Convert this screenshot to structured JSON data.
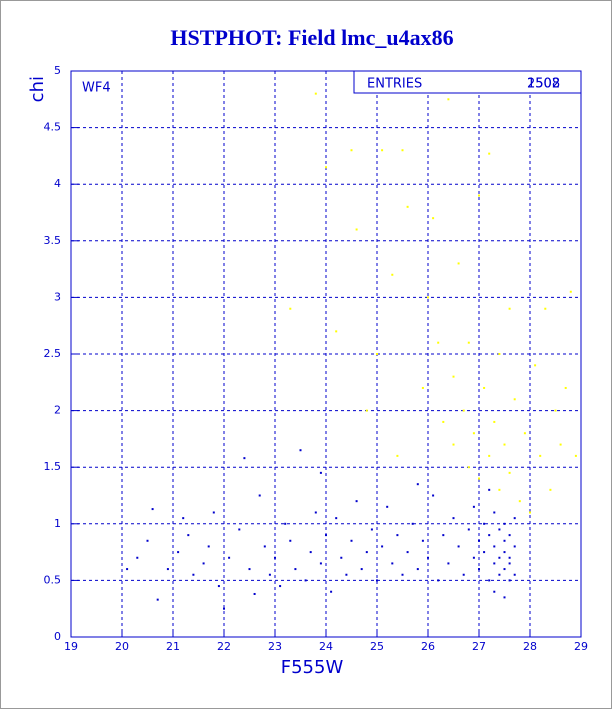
{
  "chart_data": {
    "type": "scatter",
    "title": "HSTPHOT: Field lmc_u4ax86",
    "xlabel": "F555W",
    "ylabel": "chi",
    "annotation": "WF4",
    "legend_label": "ENTRIES",
    "entries": [
      "2508",
      "1502"
    ],
    "xlim": [
      19,
      29
    ],
    "xticks": [
      19,
      20,
      21,
      22,
      23,
      24,
      25,
      26,
      27,
      28,
      29
    ],
    "ylim": [
      0,
      5
    ],
    "yticks": [
      0,
      0.5,
      1,
      1.5,
      2,
      2.5,
      3,
      3.5,
      4,
      4.5,
      5
    ],
    "grid": true,
    "series": [
      {
        "color": "#0000cc",
        "x": [
          20.1,
          20.3,
          20.5,
          20.6,
          20.7,
          20.9,
          21.1,
          21.2,
          21.3,
          21.4,
          21.6,
          21.7,
          21.8,
          21.9,
          22.0,
          22.1,
          22.3,
          22.4,
          22.5,
          22.6,
          22.7,
          22.8,
          22.9,
          23.0,
          23.1,
          23.2,
          23.3,
          23.4,
          23.5,
          23.6,
          23.7,
          23.8,
          23.9,
          24.0,
          24.1,
          24.2,
          24.3,
          24.4,
          24.5,
          24.6,
          24.7,
          24.8,
          24.9,
          25.0,
          25.1,
          25.2,
          25.3,
          25.4,
          25.5,
          25.6,
          25.7,
          25.8,
          25.9,
          26.0,
          26.1,
          26.2,
          26.3,
          26.4,
          26.5,
          26.6,
          26.7,
          26.8,
          26.9,
          27.0,
          27.0,
          27.1,
          27.1,
          27.2,
          27.2,
          27.3,
          27.3,
          27.3,
          27.4,
          27.4,
          27.4,
          27.5,
          27.5,
          27.5,
          27.5,
          27.6,
          27.6,
          27.6,
          27.6,
          27.7,
          27.7,
          27.7,
          27.3,
          27.5,
          26.9,
          27.2,
          25.8,
          23.9
        ],
        "y": [
          0.6,
          0.7,
          0.85,
          1.13,
          0.33,
          0.6,
          0.75,
          1.05,
          0.9,
          0.55,
          0.65,
          0.8,
          1.1,
          0.45,
          0.25,
          0.7,
          0.95,
          1.58,
          0.6,
          0.38,
          1.25,
          0.8,
          0.55,
          0.7,
          0.45,
          1.0,
          0.85,
          0.6,
          1.65,
          0.5,
          0.75,
          1.1,
          0.65,
          0.9,
          0.4,
          1.05,
          0.7,
          0.55,
          0.85,
          1.2,
          0.6,
          0.75,
          0.95,
          0.5,
          0.8,
          1.15,
          0.65,
          0.9,
          0.55,
          0.75,
          1.0,
          0.6,
          0.85,
          0.7,
          1.25,
          0.5,
          0.9,
          0.65,
          1.05,
          0.8,
          0.55,
          0.95,
          0.7,
          0.85,
          0.6,
          1.0,
          0.75,
          0.5,
          0.9,
          0.65,
          0.8,
          1.1,
          0.55,
          0.7,
          0.95,
          0.6,
          0.85,
          0.75,
          1.0,
          0.5,
          0.7,
          0.9,
          0.65,
          0.8,
          0.55,
          1.05,
          0.4,
          0.35,
          1.15,
          1.3,
          1.35,
          1.45
        ]
      },
      {
        "color": "#ffff00",
        "x": [
          23.3,
          23.8,
          24.0,
          24.5,
          24.2,
          24.6,
          25.1,
          25.3,
          25.5,
          25.6,
          25.9,
          26.0,
          26.1,
          26.2,
          26.3,
          26.4,
          26.5,
          26.5,
          26.6,
          26.7,
          26.8,
          26.8,
          26.9,
          27.0,
          27.0,
          27.1,
          27.2,
          27.2,
          27.3,
          27.4,
          27.4,
          27.5,
          27.6,
          27.6,
          27.7,
          27.8,
          27.9,
          28.0,
          28.1,
          28.2,
          28.3,
          28.4,
          28.5,
          28.6,
          28.7,
          28.8,
          28.9,
          25.0,
          24.8,
          25.4
        ],
        "y": [
          2.9,
          4.8,
          4.15,
          4.3,
          2.7,
          3.6,
          4.3,
          3.2,
          4.3,
          3.8,
          2.2,
          3.0,
          3.7,
          2.6,
          1.9,
          4.75,
          2.3,
          1.7,
          3.3,
          2.0,
          1.5,
          2.6,
          1.8,
          3.9,
          1.4,
          2.2,
          1.6,
          4.27,
          1.9,
          1.3,
          2.5,
          1.7,
          2.9,
          1.45,
          2.1,
          1.2,
          1.8,
          1.1,
          2.4,
          1.6,
          2.9,
          1.3,
          2.0,
          1.7,
          2.2,
          3.05,
          1.6,
          2.5,
          2.0,
          1.6
        ]
      }
    ]
  }
}
